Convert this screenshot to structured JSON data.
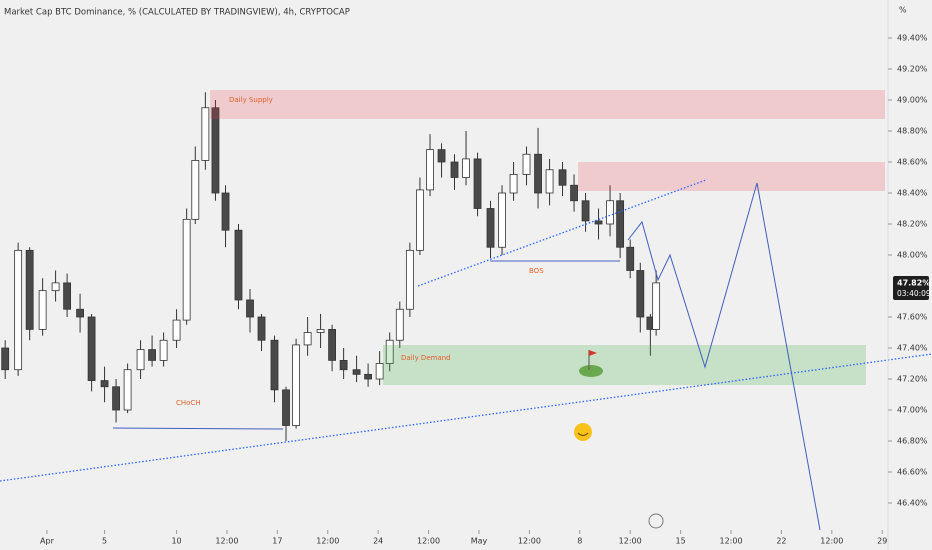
{
  "chart_data": {
    "type": "candlestick",
    "title": "Market Cap BTC Dominance, % (CALCULATED BY TRADINGVIEW), 4h, CRYPTOCAP",
    "y_unit": "%",
    "last_price_label": "47.82%",
    "countdown": "03:40:09",
    "annotations": {
      "supply": "Daily Supply",
      "demand": "Daily Demand",
      "choch": "CHoCH",
      "bos": "BOS"
    },
    "xlim": [
      -3.26,
      58.4
    ],
    "ylim": [
      46.3,
      49.6
    ],
    "xticks": [
      {
        "value": 0,
        "label": "Apr"
      },
      {
        "value": 4,
        "label": "5"
      },
      {
        "value": 9,
        "label": "10"
      },
      {
        "value": 12.5,
        "label": "12:00"
      },
      {
        "value": 16,
        "label": "17"
      },
      {
        "value": 19.5,
        "label": "12:00"
      },
      {
        "value": 23,
        "label": "24"
      },
      {
        "value": 26.5,
        "label": "12:00"
      },
      {
        "value": 30,
        "label": "May"
      },
      {
        "value": 33.5,
        "label": "12:00"
      },
      {
        "value": 37,
        "label": "8"
      },
      {
        "value": 40.5,
        "label": "12:00"
      },
      {
        "value": 44,
        "label": "15"
      },
      {
        "value": 47.5,
        "label": "12:00"
      },
      {
        "value": 51,
        "label": "22"
      },
      {
        "value": 54.5,
        "label": "12:00"
      },
      {
        "value": 58,
        "label": "29"
      }
    ],
    "yticks": [
      {
        "value": 49.4,
        "label": "49.40%"
      },
      {
        "value": 49.2,
        "label": "49.20%"
      },
      {
        "value": 49.0,
        "label": "49.00%"
      },
      {
        "value": 48.8,
        "label": "48.80%"
      },
      {
        "value": 48.6,
        "label": "48.60%"
      },
      {
        "value": 48.4,
        "label": "48.40%"
      },
      {
        "value": 48.2,
        "label": "48.20%"
      },
      {
        "value": 48.0,
        "label": "48.00%"
      },
      {
        "value": 47.6,
        "label": "47.60%"
      },
      {
        "value": 47.4,
        "label": "47.40%"
      },
      {
        "value": 47.2,
        "label": "47.20%"
      },
      {
        "value": 47.0,
        "label": "47.00%"
      },
      {
        "value": 46.8,
        "label": "46.80%"
      },
      {
        "value": 46.6,
        "label": "46.60%"
      },
      {
        "value": 46.4,
        "label": "46.40%"
      }
    ],
    "up_color": "#ffffff",
    "down_color": "#4a4a4a",
    "edge_color": "#333333",
    "x": [
      -2.9,
      -2.0,
      -1.2,
      -0.3,
      0.6,
      1.4,
      2.3,
      3.1,
      4.0,
      4.8,
      5.6,
      6.5,
      7.3,
      8.1,
      9.0,
      9.7,
      10.3,
      11.0,
      11.7,
      12.4,
      13.3,
      14.1,
      14.9,
      15.8,
      16.6,
      17.3,
      18.1,
      19.0,
      19.8,
      20.6,
      21.5,
      22.3,
      23.1,
      23.8,
      24.5,
      25.2,
      25.9,
      26.6,
      27.4,
      28.3,
      29.1,
      29.9,
      30.8,
      31.6,
      32.4,
      33.3,
      34.1,
      34.9,
      35.8,
      36.6,
      37.4,
      38.3,
      39.1,
      39.8,
      40.5,
      41.2,
      41.9,
      42.3
    ],
    "open": [
      47.4,
      47.26,
      48.03,
      47.52,
      47.77,
      47.82,
      47.65,
      47.6,
      47.19,
      47.15,
      47.0,
      47.26,
      47.39,
      47.32,
      47.45,
      47.58,
      48.23,
      48.61,
      48.95,
      48.4,
      48.16,
      47.71,
      47.6,
      47.45,
      47.13,
      46.9,
      47.42,
      47.5,
      47.52,
      47.32,
      47.26,
      47.23,
      47.2,
      47.3,
      47.45,
      47.65,
      48.03,
      48.42,
      48.68,
      48.6,
      48.5,
      48.62,
      48.3,
      48.05,
      48.4,
      48.52,
      48.65,
      48.4,
      48.55,
      48.45,
      48.35,
      48.22,
      48.2,
      48.35,
      48.05,
      47.9,
      47.6,
      47.52
    ],
    "high": [
      47.45,
      48.08,
      48.05,
      47.85,
      47.9,
      47.88,
      47.75,
      47.62,
      47.28,
      47.2,
      47.3,
      47.45,
      47.48,
      47.5,
      47.65,
      48.3,
      48.7,
      49.05,
      49.0,
      48.45,
      48.2,
      47.78,
      47.62,
      47.48,
      47.15,
      47.46,
      47.6,
      47.62,
      47.55,
      47.4,
      47.35,
      47.3,
      47.38,
      47.5,
      47.7,
      48.08,
      48.5,
      48.78,
      48.72,
      48.65,
      48.8,
      48.66,
      48.35,
      48.45,
      48.6,
      48.7,
      48.82,
      48.62,
      48.6,
      48.52,
      48.4,
      48.3,
      48.45,
      48.4,
      48.1,
      47.95,
      47.62,
      47.9
    ],
    "low": [
      47.2,
      47.22,
      47.45,
      47.48,
      47.7,
      47.6,
      47.5,
      47.12,
      47.05,
      46.92,
      46.98,
      47.2,
      47.28,
      47.28,
      47.4,
      47.55,
      48.2,
      48.55,
      48.35,
      48.05,
      47.65,
      47.5,
      47.38,
      47.05,
      46.8,
      46.88,
      47.35,
      47.4,
      47.25,
      47.2,
      47.18,
      47.15,
      47.16,
      47.25,
      47.4,
      47.6,
      48.0,
      48.38,
      48.5,
      48.42,
      48.45,
      48.25,
      47.98,
      48.0,
      48.35,
      48.45,
      48.3,
      48.32,
      48.38,
      48.28,
      48.15,
      48.1,
      48.12,
      47.98,
      47.85,
      47.5,
      47.35,
      47.48
    ],
    "close": [
      47.26,
      48.03,
      47.52,
      47.77,
      47.82,
      47.65,
      47.6,
      47.19,
      47.15,
      47.0,
      47.26,
      47.39,
      47.32,
      47.45,
      47.58,
      48.23,
      48.61,
      48.95,
      48.4,
      48.16,
      47.71,
      47.6,
      47.45,
      47.13,
      46.9,
      47.42,
      47.5,
      47.52,
      47.32,
      47.26,
      47.23,
      47.2,
      47.3,
      47.45,
      47.65,
      48.03,
      48.42,
      48.68,
      48.6,
      48.5,
      48.62,
      48.3,
      48.05,
      48.4,
      48.52,
      48.65,
      48.4,
      48.55,
      48.45,
      48.35,
      48.22,
      48.2,
      48.35,
      48.05,
      47.9,
      47.6,
      47.52,
      47.82
    ]
  }
}
